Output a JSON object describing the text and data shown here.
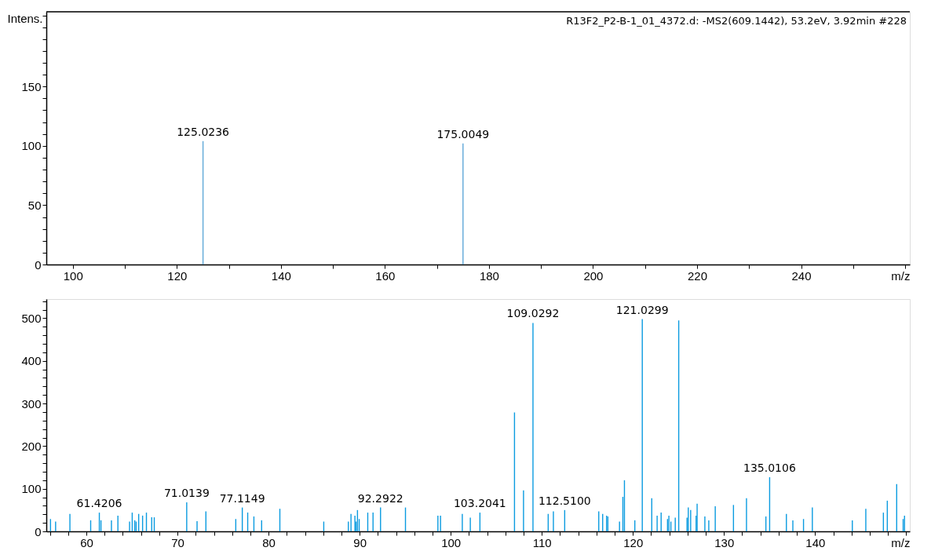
{
  "chart_data": [
    {
      "type": "bar",
      "ylabel": "Intens.",
      "xlabel": "m/z",
      "color": "#5fa8d8",
      "annotations": [
        "R13F2_P2-B-1_01_4372.d: -MS2(609.1442), 53.2eV, 3.92min #228",
        {
          "text": "125.0236",
          "x": 125.0236,
          "y": 104
        },
        {
          "text": "175.0049",
          "x": 175.0049,
          "y": 102
        }
      ],
      "x": [
        125.0236,
        175.0049
      ],
      "values": [
        104,
        102
      ],
      "xlim": [
        94.9,
        260.9
      ],
      "ylim": [
        0,
        213
      ],
      "xticks": [
        100,
        {
          "value": 110,
          "label": null
        },
        120,
        {
          "value": 130,
          "label": null
        },
        140,
        {
          "value": 150,
          "label": null
        },
        160,
        {
          "value": 170,
          "label": null
        },
        180,
        {
          "value": 190,
          "label": null
        },
        200,
        {
          "value": 210,
          "label": null
        },
        220,
        {
          "value": 230,
          "label": null
        },
        240,
        {
          "value": 250,
          "label": null
        },
        {
          "value": 260,
          "label": null
        }
      ],
      "yticks": [
        0,
        {
          "value": 10,
          "label": null
        },
        {
          "value": 20,
          "label": null
        },
        {
          "value": 30,
          "label": null
        },
        {
          "value": 40,
          "label": null
        },
        50,
        {
          "value": 60,
          "label": null
        },
        {
          "value": 70,
          "label": null
        },
        {
          "value": 80,
          "label": null
        },
        {
          "value": 90,
          "label": null
        },
        100,
        {
          "value": 110,
          "label": null
        },
        {
          "value": 120,
          "label": null
        },
        {
          "value": 130,
          "label": null
        },
        {
          "value": 140,
          "label": null
        },
        150,
        {
          "value": 160,
          "label": null
        },
        {
          "value": 170,
          "label": null
        },
        {
          "value": 180,
          "label": null
        },
        {
          "value": 190,
          "label": null
        },
        {
          "value": 200,
          "label": null
        },
        {
          "value": 210,
          "label": null
        }
      ],
      "grid": false
    },
    {
      "type": "bar",
      "xlabel": "m/z",
      "color": "#0a9be0",
      "annotations": [
        {
          "text": "61.4206",
          "x": 61.4206,
          "y": 44
        },
        {
          "text": "71.0139",
          "x": 71.0139,
          "y": 68
        },
        {
          "text": "77.1149",
          "x": 77.1149,
          "y": 56
        },
        {
          "text": "92.2922",
          "x": 92.2922,
          "y": 56
        },
        {
          "text": "103.2041",
          "x": 103.2041,
          "y": 44
        },
        {
          "text": "109.0292",
          "x": 109.0292,
          "y": 489
        },
        {
          "text": "112.5100",
          "x": 112.51,
          "y": 50
        },
        {
          "text": "121.0299",
          "x": 121.0299,
          "y": 498
        },
        {
          "text": "135.0106",
          "x": 135.0106,
          "y": 127
        }
      ],
      "x": [
        56.06,
        56.62,
        58.19,
        60.47,
        61.4206,
        61.6,
        62.75,
        63.46,
        64.74,
        65.03,
        65.31,
        65.46,
        65.74,
        66.17,
        66.59,
        67.17,
        67.45,
        71.0139,
        72.15,
        73.12,
        76.4,
        77.1149,
        77.71,
        78.39,
        79.24,
        81.24,
        86.06,
        88.76,
        89.05,
        89.48,
        89.61,
        89.76,
        89.95,
        90.89,
        91.47,
        92.2922,
        95.03,
        98.59,
        98.88,
        101.27,
        102.15,
        103.2041,
        107.0,
        107.99,
        109.0292,
        110.7,
        111.27,
        112.51,
        116.25,
        116.68,
        117.11,
        117.25,
        118.53,
        118.9,
        119.07,
        120.21,
        121.0299,
        122.07,
        122.66,
        123.1,
        123.8,
        123.95,
        124.17,
        124.65,
        125.03,
        125.94,
        126.08,
        126.34,
        126.94,
        127.05,
        127.9,
        128.33,
        129.04,
        131.04,
        132.47,
        134.6,
        135.0106,
        136.85,
        137.56,
        138.73,
        139.7,
        144.09,
        145.57,
        147.5,
        147.93,
        148.96,
        149.67,
        149.82
      ],
      "values": [
        29,
        23,
        41,
        26,
        44,
        26,
        26,
        37,
        23,
        44,
        26,
        23,
        41,
        37,
        44,
        33,
        33,
        68,
        24,
        47,
        29,
        56,
        44,
        35,
        26,
        53,
        23,
        23,
        41,
        37,
        23,
        50,
        29,
        44,
        44,
        56,
        56,
        37,
        37,
        41,
        32,
        44,
        279,
        96,
        489,
        41,
        47,
        50,
        47,
        41,
        37,
        35,
        23,
        81,
        120,
        26,
        498,
        78,
        37,
        44,
        29,
        37,
        23,
        32,
        495,
        32,
        56,
        50,
        37,
        65,
        35,
        26,
        59,
        62,
        78,
        35,
        127,
        41,
        26,
        29,
        56,
        26,
        53,
        44,
        72,
        111,
        29,
        37
      ],
      "xlim": [
        55.6,
        150.4
      ],
      "ylim": [
        0,
        545
      ],
      "xticks": [
        {
          "value": 56,
          "label": null
        },
        {
          "value": 58,
          "label": null
        },
        60,
        {
          "value": 62,
          "label": null
        },
        {
          "value": 64,
          "label": null
        },
        {
          "value": 66,
          "label": null
        },
        {
          "value": 68,
          "label": null
        },
        70,
        {
          "value": 72,
          "label": null
        },
        {
          "value": 74,
          "label": null
        },
        {
          "value": 76,
          "label": null
        },
        {
          "value": 78,
          "label": null
        },
        80,
        {
          "value": 82,
          "label": null
        },
        {
          "value": 84,
          "label": null
        },
        {
          "value": 86,
          "label": null
        },
        {
          "value": 88,
          "label": null
        },
        90,
        {
          "value": 92,
          "label": null
        },
        {
          "value": 94,
          "label": null
        },
        {
          "value": 96,
          "label": null
        },
        {
          "value": 98,
          "label": null
        },
        100,
        {
          "value": 102,
          "label": null
        },
        {
          "value": 104,
          "label": null
        },
        {
          "value": 106,
          "label": null
        },
        {
          "value": 108,
          "label": null
        },
        110,
        {
          "value": 112,
          "label": null
        },
        {
          "value": 114,
          "label": null
        },
        {
          "value": 116,
          "label": null
        },
        {
          "value": 118,
          "label": null
        },
        120,
        {
          "value": 122,
          "label": null
        },
        {
          "value": 124,
          "label": null
        },
        {
          "value": 126,
          "label": null
        },
        {
          "value": 128,
          "label": null
        },
        130,
        {
          "value": 132,
          "label": null
        },
        {
          "value": 134,
          "label": null
        },
        {
          "value": 136,
          "label": null
        },
        {
          "value": 138,
          "label": null
        },
        140,
        {
          "value": 142,
          "label": null
        },
        {
          "value": 144,
          "label": null
        },
        {
          "value": 146,
          "label": null
        },
        {
          "value": 148,
          "label": null
        },
        {
          "value": 150,
          "label": null
        }
      ],
      "yticks": [
        0,
        {
          "value": 20,
          "label": null
        },
        {
          "value": 40,
          "label": null
        },
        {
          "value": 60,
          "label": null
        },
        {
          "value": 80,
          "label": null
        },
        100,
        {
          "value": 120,
          "label": null
        },
        {
          "value": 140,
          "label": null
        },
        {
          "value": 160,
          "label": null
        },
        {
          "value": 180,
          "label": null
        },
        200,
        {
          "value": 220,
          "label": null
        },
        {
          "value": 240,
          "label": null
        },
        {
          "value": 260,
          "label": null
        },
        {
          "value": 280,
          "label": null
        },
        300,
        {
          "value": 320,
          "label": null
        },
        {
          "value": 340,
          "label": null
        },
        {
          "value": 360,
          "label": null
        },
        {
          "value": 380,
          "label": null
        },
        400,
        {
          "value": 420,
          "label": null
        },
        {
          "value": 440,
          "label": null
        },
        {
          "value": 460,
          "label": null
        },
        {
          "value": 480,
          "label": null
        },
        500,
        {
          "value": 520,
          "label": null
        },
        {
          "value": 540,
          "label": null
        }
      ],
      "grid": false
    }
  ]
}
